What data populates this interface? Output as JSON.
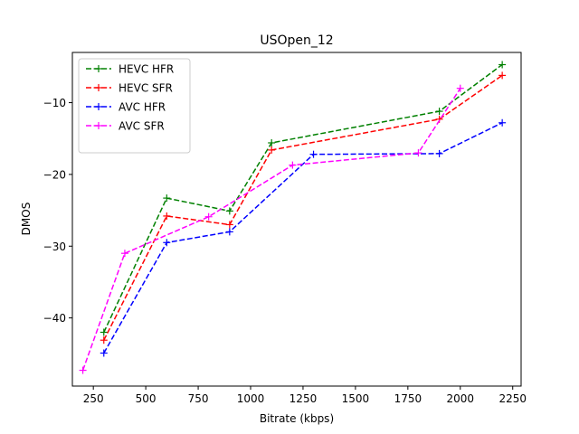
{
  "chart_data": {
    "type": "line",
    "title": "USOpen_12",
    "xlabel": "Bitrate (kbps)",
    "ylabel": "DMOS",
    "xlim": [
      150,
      2290
    ],
    "ylim": [
      -49.5,
      -3.0
    ],
    "xticks": [
      250,
      500,
      750,
      1000,
      1250,
      1500,
      1750,
      2000,
      2250
    ],
    "yticks": [
      -40,
      -30,
      -20,
      -10
    ],
    "grid": false,
    "legend_position": "top-left",
    "series": [
      {
        "name": "HEVC HFR",
        "color": "#008000",
        "x": [
          300,
          600,
          900,
          1100,
          1900,
          2200
        ],
        "y": [
          -42.0,
          -23.3,
          -25.1,
          -15.6,
          -11.2,
          -4.7
        ]
      },
      {
        "name": "HEVC SFR",
        "color": "#ff0000",
        "x": [
          300,
          600,
          900,
          1100,
          1900,
          2200
        ],
        "y": [
          -43.1,
          -25.8,
          -27.0,
          -16.6,
          -12.3,
          -6.2
        ]
      },
      {
        "name": "AVC HFR",
        "color": "#0000ff",
        "x": [
          300,
          600,
          900,
          1300,
          1900,
          2200
        ],
        "y": [
          -44.9,
          -29.5,
          -28.0,
          -17.2,
          -17.1,
          -12.8
        ]
      },
      {
        "name": "AVC SFR",
        "color": "#ff00ff",
        "x": [
          200,
          400,
          800,
          1200,
          1800,
          2000
        ],
        "y": [
          -47.3,
          -31.0,
          -25.9,
          -18.7,
          -17.0,
          -8.0
        ]
      }
    ]
  }
}
